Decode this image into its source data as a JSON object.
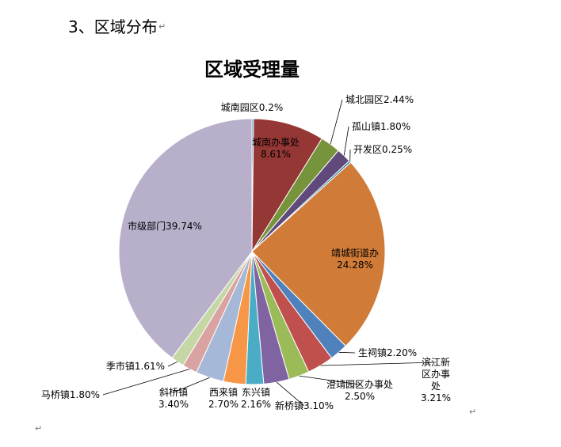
{
  "document": {
    "section_heading": "3、区域分布",
    "paragraph_mark": "↵"
  },
  "chart_data": {
    "type": "pie",
    "title": "区域受理量",
    "start_angle_deg": 0,
    "direction": "clockwise",
    "slices": [
      {
        "name": "城南园区",
        "value": 0.2,
        "label": "城南园区0.2%",
        "color": "#4F81BD"
      },
      {
        "name": "城南办事处",
        "value": 8.61,
        "label": "城南办事处\n8.61%",
        "color": "#953735"
      },
      {
        "name": "城北园区",
        "value": 2.44,
        "label": "城北园区2.44%",
        "color": "#77933C"
      },
      {
        "name": "孤山镇",
        "value": 1.8,
        "label": "孤山镇1.80%",
        "color": "#604A7B"
      },
      {
        "name": "开发区",
        "value": 0.25,
        "label": "开发区0.25%",
        "color": "#31859C"
      },
      {
        "name": "靖城街道办",
        "value": 24.28,
        "label": "靖城街道办\n24.28%",
        "color": "#D07B38"
      },
      {
        "name": "生祠镇",
        "value": 2.2,
        "label": "生祠镇2.20%",
        "color": "#4F81BD"
      },
      {
        "name": "滨江新区办事处",
        "value": 3.21,
        "label": "滨江新\n区办事\n处\n3.21%",
        "color": "#C0504D"
      },
      {
        "name": "澄靖园区办事处",
        "value": 2.5,
        "label": "澄靖园区办事处\n2.50%",
        "color": "#9BBB59"
      },
      {
        "name": "新桥镇",
        "value": 3.1,
        "label": "新桥镇3.10%",
        "color": "#8064A2"
      },
      {
        "name": "东兴镇",
        "value": 2.16,
        "label": "东兴镇\n2.16%",
        "color": "#4BACC6"
      },
      {
        "name": "西来镇",
        "value": 2.7,
        "label": "西来镇\n2.70%",
        "color": "#F79646"
      },
      {
        "name": "斜桥镇",
        "value": 3.4,
        "label": "斜桥镇\n3.40%",
        "color": "#A6B8D8"
      },
      {
        "name": "马桥镇",
        "value": 1.8,
        "label": "马桥镇1.80%",
        "color": "#D9A3A2"
      },
      {
        "name": "季市镇",
        "value": 1.61,
        "label": "季市镇1.61%",
        "color": "#C4D7A5"
      },
      {
        "name": "市级部门",
        "value": 39.74,
        "label": "市级部门39.74%",
        "color": "#B8AFCB"
      }
    ]
  }
}
